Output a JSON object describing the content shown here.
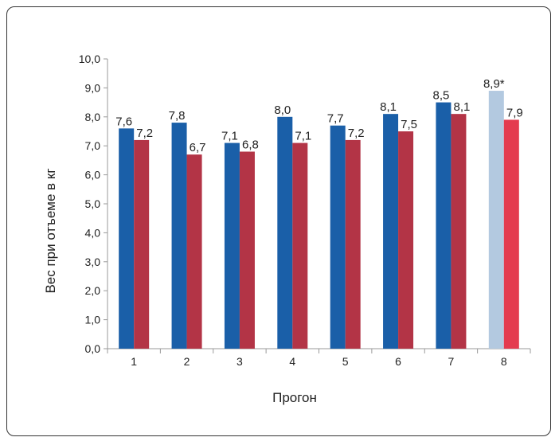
{
  "chart_data": {
    "type": "bar",
    "title": "",
    "xlabel": "Прогон",
    "ylabel": "Вес при отъеме в кг",
    "ylim": [
      0,
      10
    ],
    "yticks": [
      0,
      1,
      2,
      3,
      4,
      5,
      6,
      7,
      8,
      9,
      10
    ],
    "ytick_labels": [
      "0,0",
      "1,0",
      "2,0",
      "3,0",
      "4,0",
      "5,0",
      "6,0",
      "7,0",
      "8,0",
      "9,0",
      "10,0"
    ],
    "categories": [
      "1",
      "2",
      "3",
      "4",
      "5",
      "6",
      "7",
      "8"
    ],
    "grid": false,
    "legend": "none",
    "series": [
      {
        "values": [
          7.6,
          7.8,
          7.1,
          8.0,
          7.7,
          8.1,
          8.5,
          8.9
        ],
        "labels": [
          "7,6",
          "7,8",
          "7,1",
          "8,0",
          "7,7",
          "8,1",
          "8,5",
          "8,9*"
        ],
        "color": "#1a5fa8",
        "last_bar_color": "#b3c9e0"
      },
      {
        "values": [
          7.2,
          6.7,
          6.8,
          7.1,
          7.2,
          7.5,
          8.1,
          7.9
        ],
        "labels": [
          "7,2",
          "6,7",
          "6,8",
          "7,1",
          "7,2",
          "7,5",
          "8,1",
          "7,9"
        ],
        "color": "#b33446",
        "last_bar_color": "#e43b4f"
      }
    ]
  }
}
